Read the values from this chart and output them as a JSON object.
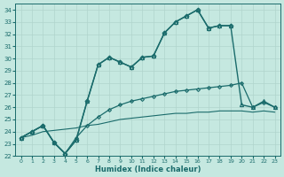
{
  "xlabel": "Humidex (Indice chaleur)",
  "xlim": [
    -0.5,
    23.5
  ],
  "ylim": [
    22,
    34.5
  ],
  "xticks": [
    0,
    1,
    2,
    3,
    4,
    5,
    6,
    7,
    8,
    9,
    10,
    11,
    12,
    13,
    14,
    15,
    16,
    17,
    18,
    19,
    20,
    21,
    22,
    23
  ],
  "yticks": [
    22,
    23,
    24,
    25,
    26,
    27,
    28,
    29,
    30,
    31,
    32,
    33,
    34
  ],
  "bg_color": "#c5e8e0",
  "grid_color": "#b0d4cc",
  "line_color": "#1a6b6b",
  "series": [
    {
      "x": [
        0,
        1,
        2,
        3,
        4,
        5,
        6,
        7,
        8,
        9,
        10,
        11,
        12,
        13,
        14,
        15,
        16,
        17,
        18,
        19
      ],
      "y": [
        23.5,
        24.0,
        24.5,
        23.1,
        22.2,
        23.3,
        26.5,
        29.5,
        30.1,
        29.7,
        29.3,
        30.1,
        30.2,
        32.1,
        33.0,
        33.5,
        34.0,
        32.5,
        32.7,
        32.7
      ],
      "marker": "D",
      "markersize": 2.5,
      "linewidth": 1.0
    },
    {
      "x": [
        0,
        1,
        2,
        3,
        4,
        5,
        6,
        7,
        8,
        9,
        10,
        11,
        12,
        13,
        14,
        15,
        16,
        17,
        18,
        19,
        20,
        21,
        22,
        23
      ],
      "y": [
        23.5,
        24.0,
        24.5,
        23.1,
        22.2,
        23.3,
        26.5,
        29.5,
        30.1,
        29.7,
        29.3,
        30.1,
        30.2,
        32.1,
        33.0,
        33.5,
        34.0,
        32.5,
        32.7,
        32.7,
        26.2,
        26.0,
        26.5,
        26.0
      ],
      "marker": "^",
      "markersize": 3.0,
      "linewidth": 1.0
    },
    {
      "x": [
        0,
        1,
        2,
        3,
        4,
        5,
        6,
        7,
        8,
        9,
        10,
        11,
        12,
        13,
        14,
        15,
        16,
        17,
        18,
        19,
        20,
        21,
        22,
        23
      ],
      "y": [
        23.5,
        24.0,
        24.5,
        23.1,
        22.2,
        23.5,
        24.5,
        25.2,
        25.8,
        26.2,
        26.5,
        26.7,
        26.9,
        27.1,
        27.3,
        27.4,
        27.5,
        27.6,
        27.7,
        27.8,
        28.0,
        26.0,
        26.4,
        26.0
      ],
      "marker": "D",
      "markersize": 2.0,
      "linewidth": 0.9
    },
    {
      "x": [
        0,
        1,
        2,
        3,
        4,
        5,
        6,
        7,
        8,
        9,
        10,
        11,
        12,
        13,
        14,
        15,
        16,
        17,
        18,
        19,
        20,
        21,
        22,
        23
      ],
      "y": [
        23.5,
        23.7,
        24.0,
        24.1,
        24.2,
        24.3,
        24.5,
        24.6,
        24.8,
        25.0,
        25.1,
        25.2,
        25.3,
        25.4,
        25.5,
        25.5,
        25.6,
        25.6,
        25.7,
        25.7,
        25.7,
        25.6,
        25.7,
        25.6
      ],
      "marker": "",
      "markersize": 0,
      "linewidth": 0.8
    }
  ]
}
